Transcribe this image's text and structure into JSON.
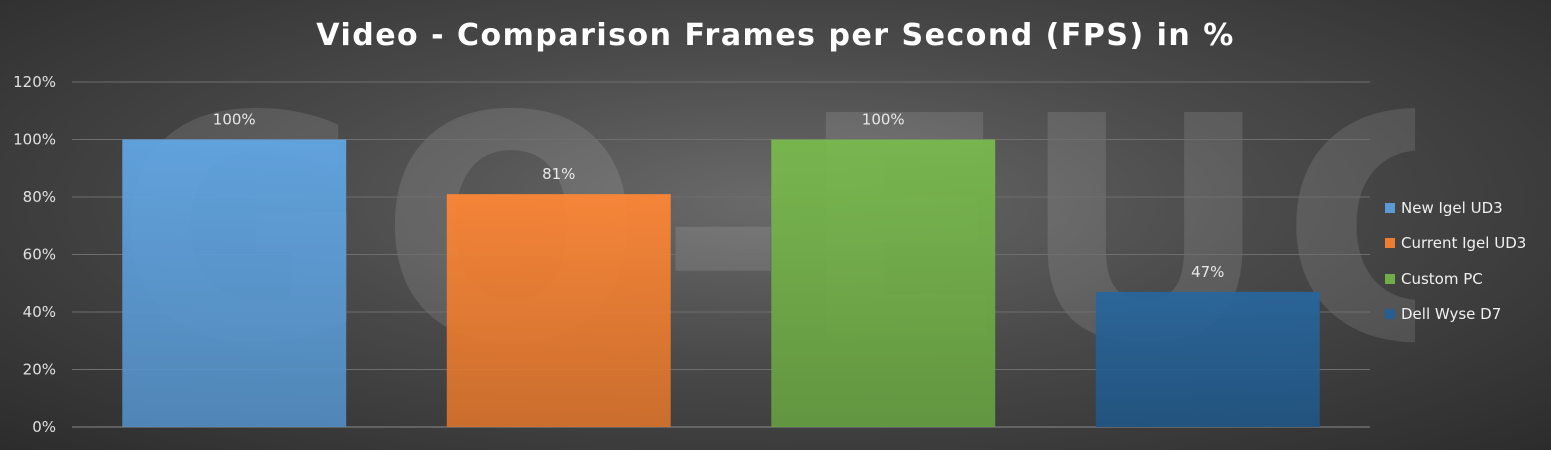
{
  "chart_data": {
    "type": "bar",
    "title": "Video - Comparison Frames per Second (FPS) in %",
    "categories": [
      "New Igel UD3",
      "Current Igel UD3",
      "Custom PC",
      "Dell Wyse D7"
    ],
    "values": [
      100,
      81,
      100,
      47
    ],
    "data_labels": [
      "100%",
      "81%",
      "100%",
      "47%"
    ],
    "colors": [
      "#5b9bd5",
      "#ed7d31",
      "#70ad47",
      "#255e91"
    ],
    "ylim": [
      0,
      120
    ],
    "yticks": [
      0,
      20,
      40,
      60,
      80,
      100,
      120
    ],
    "ytick_labels": [
      "0%",
      "20%",
      "40%",
      "60%",
      "80%",
      "100%",
      "120%"
    ],
    "xlabel": "",
    "ylabel": "",
    "grid": true,
    "legend": {
      "position": "right",
      "entries": [
        "New Igel UD3",
        "Current Igel UD3",
        "Custom PC",
        "Dell Wyse D7"
      ]
    },
    "watermark": "GO-EUC"
  }
}
